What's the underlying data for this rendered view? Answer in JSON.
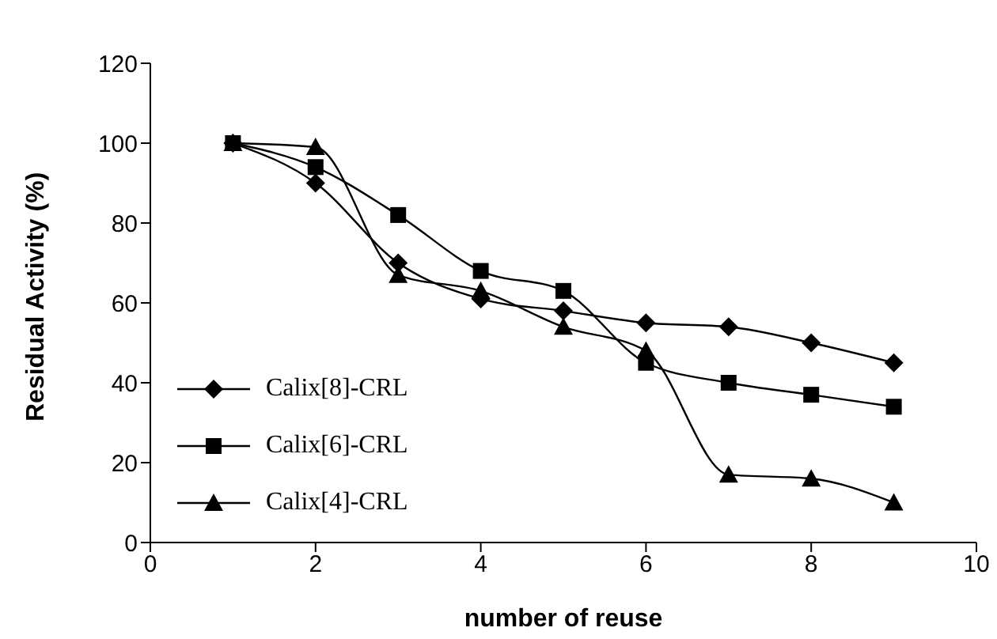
{
  "chart_data": {
    "type": "line",
    "xlabel": "number of reuse",
    "ylabel": "Residual Activity (%)",
    "x": [
      1,
      2,
      3,
      4,
      5,
      6,
      7,
      8,
      9
    ],
    "series": [
      {
        "name": "Calix[8]-CRL",
        "color": "#000000",
        "marker": "diamond",
        "values": [
          100,
          90,
          70,
          61,
          58,
          55,
          54,
          50,
          45
        ]
      },
      {
        "name": "Calix[6]-CRL",
        "color": "#000000",
        "marker": "square",
        "values": [
          100,
          94,
          82,
          68,
          63,
          45,
          40,
          37,
          34
        ]
      },
      {
        "name": "Calix[4]-CRL",
        "color": "#000000",
        "marker": "triangle",
        "values": [
          100,
          99,
          67,
          63,
          54,
          48,
          17,
          16,
          10
        ]
      }
    ],
    "xlim": [
      0,
      10
    ],
    "xticks": [
      0,
      2,
      4,
      6,
      8,
      10
    ],
    "ylim": [
      0,
      120
    ],
    "yticks": [
      0,
      20,
      40,
      60,
      80,
      100,
      120
    ],
    "grid": false,
    "legend": "bottom left",
    "line_style": "solid"
  }
}
